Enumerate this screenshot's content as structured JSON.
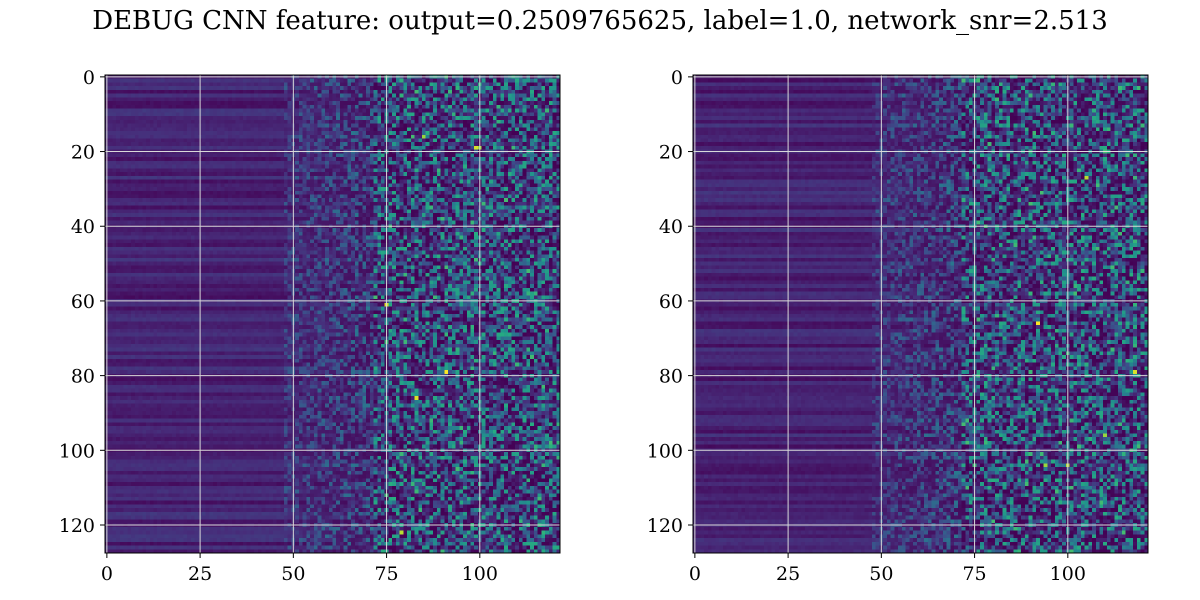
{
  "title": "DEBUG CNN feature: output=0.2509765625, label=1.0, network_snr=2.513",
  "colors": {
    "colormap": "viridis",
    "cmap_low": "#440154",
    "cmap_mid": "#21918c",
    "cmap_high": "#fde725",
    "grid": "#d9d9d9",
    "axis": "#000000"
  },
  "chart_data": [
    {
      "type": "heatmap",
      "title": "",
      "xlabel": "",
      "ylabel": "",
      "rows": 128,
      "cols": 122,
      "xlim": [
        -0.5,
        121.5
      ],
      "ylim": [
        127.5,
        -0.5
      ],
      "x_ticks": [
        0,
        25,
        50,
        75,
        100
      ],
      "y_ticks": [
        0,
        20,
        40,
        60,
        80,
        100,
        120
      ],
      "grid": true,
      "colormap": "viridis",
      "value_range": [
        0,
        1
      ],
      "texture_seed": 7,
      "bright_points": [
        {
          "x": 99,
          "y": 19,
          "v": 0.95
        },
        {
          "x": 91,
          "y": 79,
          "v": 1.0
        },
        {
          "x": 75,
          "y": 61,
          "v": 0.95
        },
        {
          "x": 83,
          "y": 86,
          "v": 0.95
        },
        {
          "x": 79,
          "y": 122,
          "v": 0.9
        },
        {
          "x": 85,
          "y": 16,
          "v": 0.85
        },
        {
          "x": 100,
          "y": 19,
          "v": 0.85
        }
      ]
    },
    {
      "type": "heatmap",
      "title": "",
      "xlabel": "",
      "ylabel": "",
      "rows": 128,
      "cols": 122,
      "xlim": [
        -0.5,
        121.5
      ],
      "ylim": [
        127.5,
        -0.5
      ],
      "x_ticks": [
        0,
        25,
        50,
        75,
        100
      ],
      "y_ticks": [
        0,
        20,
        40,
        60,
        80,
        100,
        120
      ],
      "grid": true,
      "colormap": "viridis",
      "value_range": [
        0,
        1
      ],
      "texture_seed": 19,
      "bright_points": [
        {
          "x": 92,
          "y": 66,
          "v": 1.0
        },
        {
          "x": 118,
          "y": 79,
          "v": 0.95
        },
        {
          "x": 105,
          "y": 27,
          "v": 0.9
        },
        {
          "x": 100,
          "y": 104,
          "v": 0.9
        },
        {
          "x": 110,
          "y": 96,
          "v": 0.85
        },
        {
          "x": 94,
          "y": 104,
          "v": 0.85
        }
      ]
    }
  ]
}
